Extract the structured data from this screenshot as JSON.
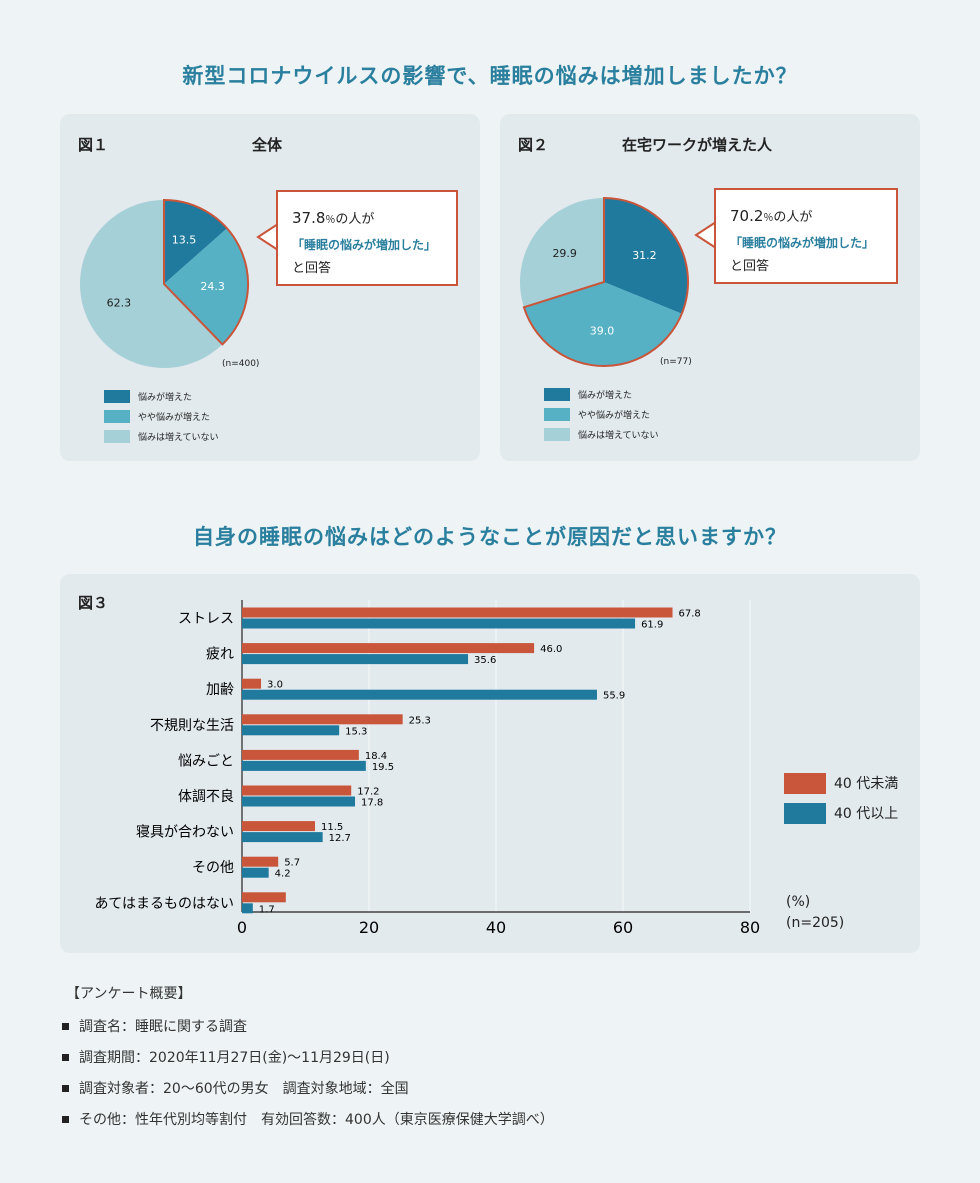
{
  "heading1": "新型コロナウイルスの影響で、睡眠の悩みは増加しましたか？",
  "heading2": "自身の睡眠の悩みはどのようなことが原因だと思いますか？",
  "fig1": {
    "label": "図１",
    "title": "全体",
    "n": "(n=400)",
    "callout": {
      "pct": "37.8",
      "unit": "％",
      "line1_rest": "の人が",
      "line2": "「睡眠の悩みが増加した」",
      "line3": "と回答"
    }
  },
  "fig2": {
    "label": "図２",
    "title": "在宅ワークが増えた人",
    "n": "(n=77)",
    "callout": {
      "pct": "70.2",
      "unit": "％",
      "line1_rest": "の人が",
      "line2": "「睡眠の悩みが増加した」",
      "line3": "と回答"
    }
  },
  "pie_legend": [
    "悩みが増えた",
    "やや悩みが増えた",
    "悩みは増えていない"
  ],
  "colors": {
    "dark": "#1f7a9e",
    "mid": "#56b1c5",
    "light": "#a6d0d8",
    "orange": "#c9553a",
    "blue": "#1f7a9e",
    "heading": "#2a7f9e"
  },
  "fig3": {
    "label": "図３",
    "legend": [
      "40 代未満",
      "40 代以上"
    ],
    "unit": "(%)",
    "n": "(n=205)"
  },
  "chart_data": [
    {
      "type": "pie",
      "title": "全体",
      "categories": [
        "悩みが増えた",
        "やや悩みが増えた",
        "悩みは増えていない"
      ],
      "values": [
        13.5,
        24.3,
        62.3
      ],
      "value_labels": [
        "13.5",
        "24.3",
        "62.3"
      ]
    },
    {
      "type": "pie",
      "title": "在宅ワークが増えた人",
      "categories": [
        "悩みが増えた",
        "やや悩みが増えた",
        "悩みは増えていない"
      ],
      "values": [
        31.2,
        39.0,
        29.9
      ],
      "value_labels": [
        "31.2",
        "39.0",
        "29.9"
      ]
    },
    {
      "type": "bar",
      "orientation": "horizontal",
      "categories": [
        "ストレス",
        "疲れ",
        "加齢",
        "不規則な生活",
        "悩みごと",
        "体調不良",
        "寝具が合わない",
        "その他",
        "あてはまるものはない"
      ],
      "series": [
        {
          "name": "40 代未満",
          "values": [
            67.8,
            46.0,
            3.0,
            25.3,
            18.4,
            17.2,
            11.5,
            5.7,
            6.9
          ],
          "labels": [
            "67.8",
            "46.0",
            "3.0",
            "25.3",
            "18.4",
            "17.2",
            "11.5",
            "5.7",
            ""
          ]
        },
        {
          "name": "40 代以上",
          "values": [
            61.9,
            35.6,
            55.9,
            15.3,
            19.5,
            17.8,
            12.7,
            4.2,
            1.7
          ],
          "labels": [
            "61.9",
            "35.6",
            "55.9",
            "15.3",
            "19.5",
            "17.8",
            "12.7",
            "4.2",
            "1.7"
          ]
        }
      ],
      "xlim": [
        0,
        80
      ],
      "xticks": [
        "0",
        "20",
        "40",
        "60",
        "80"
      ],
      "grid": true,
      "legend_position": "right"
    }
  ],
  "summary": {
    "title": "【アンケート概要】",
    "items": [
      "調査名：睡眠に関する調査",
      "調査期間：2020年11月27日(金)〜11月29日(日)",
      "調査対象者：20〜60代の男女　調査対象地域：全国",
      "その他：性年代別均等割付　有効回答数：400人（東京医療保健大学調べ）"
    ]
  }
}
